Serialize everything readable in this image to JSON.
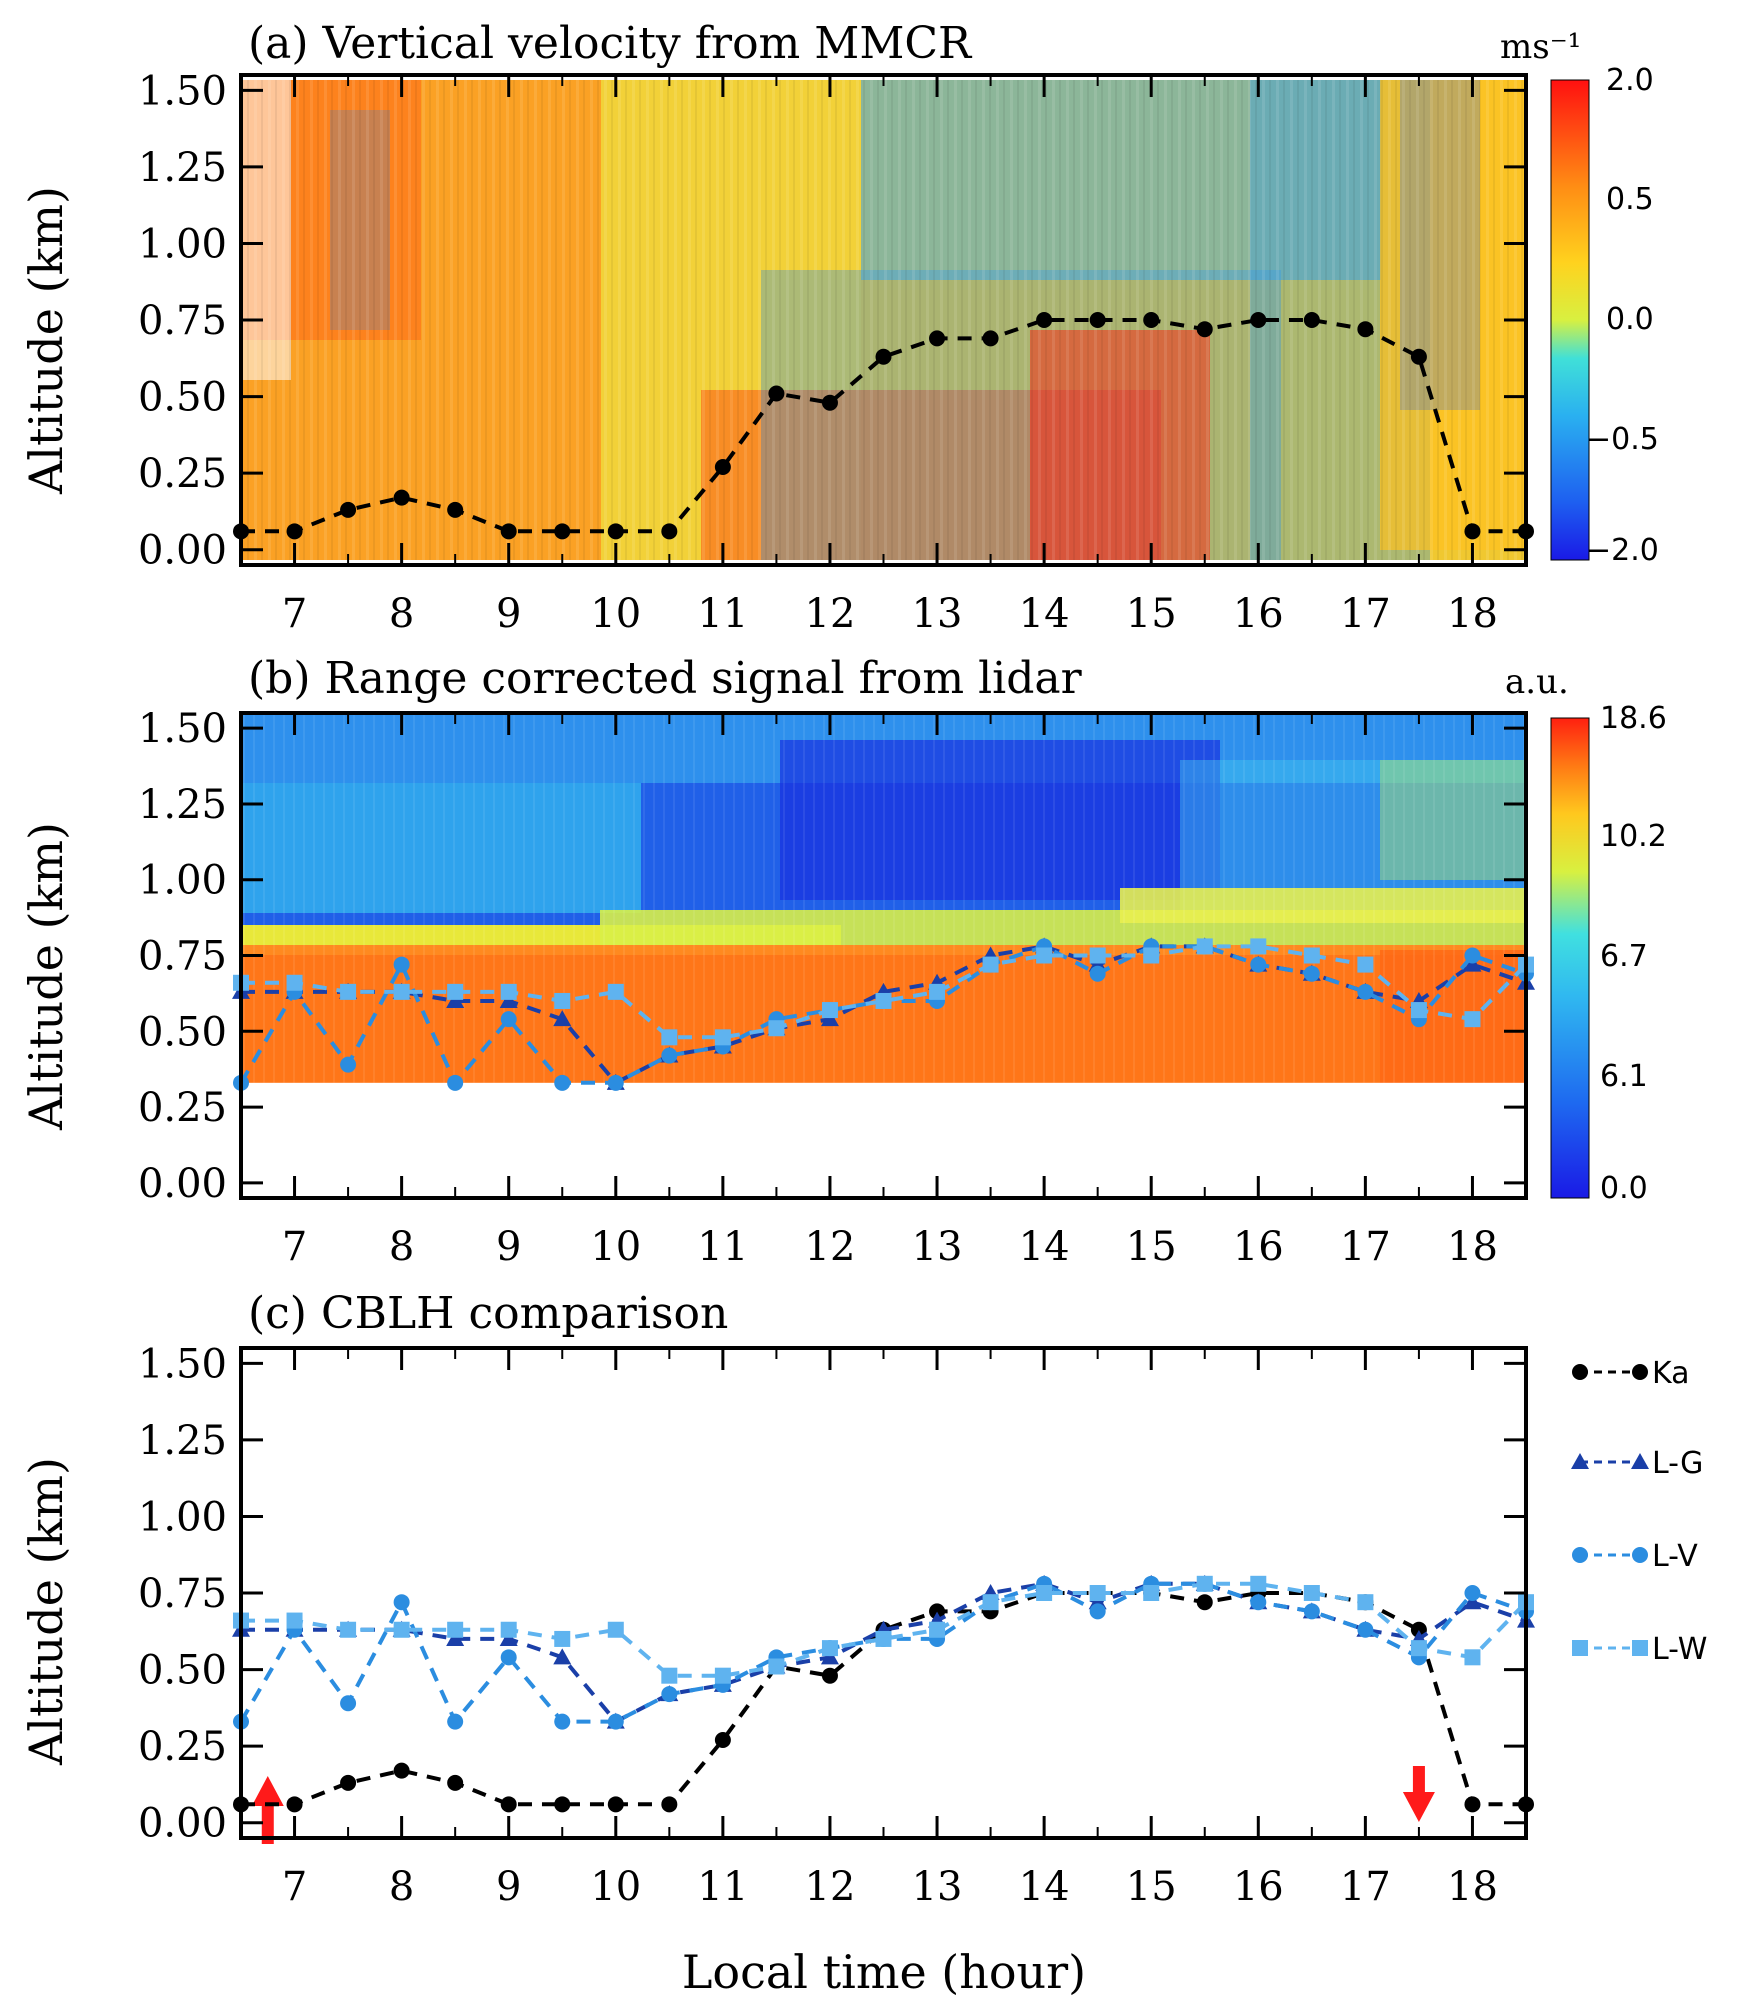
{
  "chart_data": [
    {
      "id": "a",
      "type": "heatmap",
      "title": "(a) Vertical velocity from MMCR",
      "ylabel": "Altitude (km)",
      "xlim": [
        6.5,
        18.5
      ],
      "ylim": [
        -0.05,
        1.55
      ],
      "x_ticks": [
        7,
        8,
        9,
        10,
        11,
        12,
        13,
        14,
        15,
        16,
        17,
        18
      ],
      "y_ticks": [
        "0.00",
        "0.25",
        "0.50",
        "0.75",
        "1.00",
        "1.25",
        "1.50"
      ],
      "colorbar": {
        "unit": "ms⁻¹",
        "labels": [
          "2.0",
          "0.5",
          "0.0",
          "−0.5",
          "−2.0"
        ]
      },
      "series": [
        {
          "name": "Ka",
          "color": "#000000",
          "marker": "circle",
          "x": [
            6.5,
            7,
            7.5,
            8,
            8.5,
            9,
            9.5,
            10,
            10.5,
            11,
            11.5,
            12,
            12.5,
            13,
            13.5,
            14,
            14.5,
            15,
            15.5,
            16,
            16.5,
            17,
            17.5,
            18,
            18.5
          ],
          "y": [
            0.06,
            0.06,
            0.13,
            0.17,
            0.13,
            0.06,
            0.06,
            0.06,
            0.06,
            0.27,
            0.51,
            0.48,
            0.63,
            0.69,
            0.69,
            0.75,
            0.75,
            0.75,
            0.72,
            0.75,
            0.75,
            0.72,
            0.63,
            0.06,
            0.06
          ]
        }
      ]
    },
    {
      "id": "b",
      "type": "heatmap",
      "title": "(b) Range corrected signal from lidar",
      "ylabel": "Altitude (km)",
      "xlim": [
        6.5,
        18.5
      ],
      "ylim": [
        -0.05,
        1.55
      ],
      "x_ticks": [
        7,
        8,
        9,
        10,
        11,
        12,
        13,
        14,
        15,
        16,
        17,
        18
      ],
      "y_ticks": [
        "0.00",
        "0.25",
        "0.50",
        "0.75",
        "1.00",
        "1.25",
        "1.50"
      ],
      "colorbar": {
        "unit": "a.u.",
        "labels": [
          "18.6",
          "10.2",
          "6.7",
          "6.1",
          "0.0"
        ]
      },
      "series": [
        {
          "name": "L-G",
          "color": "#1a3fa8",
          "marker": "triangle",
          "x": [
            6.5,
            7,
            7.5,
            8,
            8.5,
            9,
            9.5,
            10,
            10.5,
            11,
            11.5,
            12,
            12.5,
            13,
            13.5,
            14,
            14.5,
            15,
            15.5,
            16,
            16.5,
            17,
            17.5,
            18,
            18.5
          ],
          "y": [
            0.63,
            0.63,
            0.63,
            0.63,
            0.6,
            0.6,
            0.54,
            0.33,
            0.42,
            0.45,
            0.51,
            0.54,
            0.63,
            0.66,
            0.75,
            0.78,
            0.72,
            0.78,
            0.78,
            0.72,
            0.69,
            0.63,
            0.6,
            0.72,
            0.66
          ]
        },
        {
          "name": "L-V",
          "color": "#2b8de0",
          "marker": "circle",
          "x": [
            6.5,
            7,
            7.5,
            8,
            8.5,
            9,
            9.5,
            10,
            10.5,
            11,
            11.5,
            12,
            12.5,
            13,
            13.5,
            14,
            14.5,
            15,
            15.5,
            16,
            16.5,
            17,
            17.5,
            18,
            18.5
          ],
          "y": [
            0.33,
            0.63,
            0.39,
            0.72,
            0.33,
            0.54,
            0.33,
            0.33,
            0.42,
            0.45,
            0.54,
            0.57,
            0.6,
            0.6,
            0.72,
            0.78,
            0.69,
            0.78,
            0.78,
            0.72,
            0.69,
            0.63,
            0.54,
            0.75,
            0.69
          ]
        },
        {
          "name": "L-W",
          "color": "#5fb3ef",
          "marker": "square",
          "x": [
            6.5,
            7,
            7.5,
            8,
            8.5,
            9,
            9.5,
            10,
            10.5,
            11,
            11.5,
            12,
            12.5,
            13,
            13.5,
            14,
            14.5,
            15,
            15.5,
            16,
            16.5,
            17,
            17.5,
            18,
            18.5
          ],
          "y": [
            0.66,
            0.66,
            0.63,
            0.63,
            0.63,
            0.63,
            0.6,
            0.63,
            0.48,
            0.48,
            0.51,
            0.57,
            0.6,
            0.63,
            0.72,
            0.75,
            0.75,
            0.75,
            0.78,
            0.78,
            0.75,
            0.72,
            0.57,
            0.54,
            0.72
          ]
        }
      ]
    },
    {
      "id": "c",
      "type": "line",
      "title": "(c) CBLH comparison",
      "xlabel": "Local time (hour)",
      "ylabel": "Altitude (km)",
      "xlim": [
        6.5,
        18.5
      ],
      "ylim": [
        -0.05,
        1.55
      ],
      "x_ticks": [
        7,
        8,
        9,
        10,
        11,
        12,
        13,
        14,
        15,
        16,
        17,
        18
      ],
      "y_ticks": [
        "0.00",
        "0.25",
        "0.50",
        "0.75",
        "1.00",
        "1.25",
        "1.50"
      ],
      "legend": {
        "position": "right",
        "entries": [
          "Ka",
          "L-G",
          "L-V",
          "L-W"
        ]
      },
      "arrows": [
        {
          "x": 6.75,
          "direction": "up",
          "color": "#ff1a1a"
        },
        {
          "x": 17.5,
          "direction": "down",
          "color": "#ff1a1a"
        }
      ],
      "series": [
        {
          "name": "Ka",
          "color": "#000000",
          "marker": "circle",
          "x": [
            6.5,
            7,
            7.5,
            8,
            8.5,
            9,
            9.5,
            10,
            10.5,
            11,
            11.5,
            12,
            12.5,
            13,
            13.5,
            14,
            14.5,
            15,
            15.5,
            16,
            16.5,
            17,
            17.5,
            18,
            18.5
          ],
          "y": [
            0.06,
            0.06,
            0.13,
            0.17,
            0.13,
            0.06,
            0.06,
            0.06,
            0.06,
            0.27,
            0.51,
            0.48,
            0.63,
            0.69,
            0.69,
            0.75,
            0.75,
            0.75,
            0.72,
            0.75,
            0.75,
            0.72,
            0.63,
            0.06,
            0.06
          ]
        },
        {
          "name": "L-G",
          "color": "#1a3fa8",
          "marker": "triangle",
          "x": [
            6.5,
            7,
            7.5,
            8,
            8.5,
            9,
            9.5,
            10,
            10.5,
            11,
            11.5,
            12,
            12.5,
            13,
            13.5,
            14,
            14.5,
            15,
            15.5,
            16,
            16.5,
            17,
            17.5,
            18,
            18.5
          ],
          "y": [
            0.63,
            0.63,
            0.63,
            0.63,
            0.6,
            0.6,
            0.54,
            0.33,
            0.42,
            0.45,
            0.51,
            0.54,
            0.63,
            0.66,
            0.75,
            0.78,
            0.72,
            0.78,
            0.78,
            0.72,
            0.69,
            0.63,
            0.6,
            0.72,
            0.66
          ]
        },
        {
          "name": "L-V",
          "color": "#2b8de0",
          "marker": "circle",
          "x": [
            6.5,
            7,
            7.5,
            8,
            8.5,
            9,
            9.5,
            10,
            10.5,
            11,
            11.5,
            12,
            12.5,
            13,
            13.5,
            14,
            14.5,
            15,
            15.5,
            16,
            16.5,
            17,
            17.5,
            18,
            18.5
          ],
          "y": [
            0.33,
            0.63,
            0.39,
            0.72,
            0.33,
            0.54,
            0.33,
            0.33,
            0.42,
            0.45,
            0.54,
            0.57,
            0.6,
            0.6,
            0.72,
            0.78,
            0.69,
            0.78,
            0.78,
            0.72,
            0.69,
            0.63,
            0.54,
            0.75,
            0.69
          ]
        },
        {
          "name": "L-W",
          "color": "#5fb3ef",
          "marker": "square",
          "x": [
            6.5,
            7,
            7.5,
            8,
            8.5,
            9,
            9.5,
            10,
            10.5,
            11,
            11.5,
            12,
            12.5,
            13,
            13.5,
            14,
            14.5,
            15,
            15.5,
            16,
            16.5,
            17,
            17.5,
            18,
            18.5
          ],
          "y": [
            0.66,
            0.66,
            0.63,
            0.63,
            0.63,
            0.63,
            0.6,
            0.63,
            0.48,
            0.48,
            0.51,
            0.57,
            0.6,
            0.63,
            0.72,
            0.75,
            0.75,
            0.75,
            0.78,
            0.78,
            0.75,
            0.72,
            0.57,
            0.54,
            0.72
          ]
        }
      ]
    }
  ]
}
